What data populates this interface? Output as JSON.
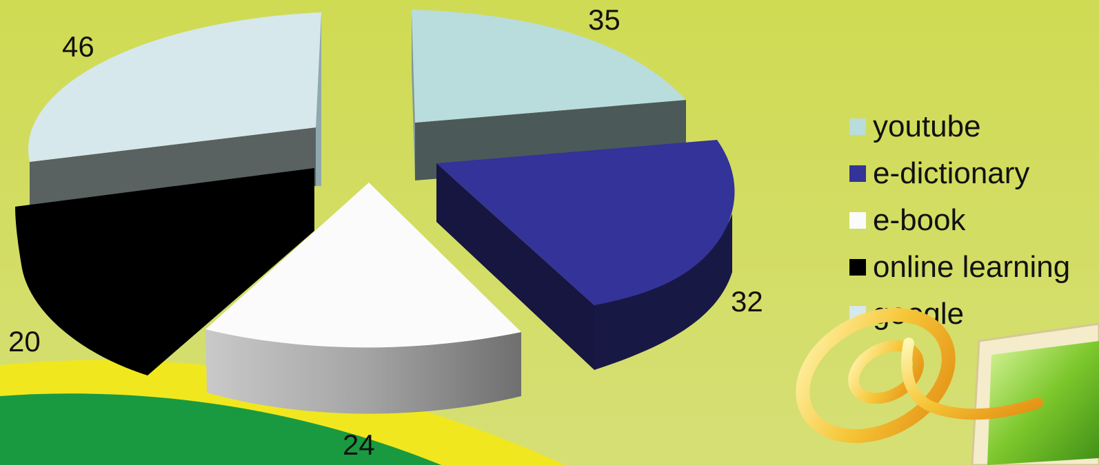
{
  "chart_data": {
    "type": "pie",
    "style": "3d-exploded",
    "categories": [
      "youtube",
      "e-dictionary",
      "e-book",
      "online learning",
      "google"
    ],
    "values": [
      35,
      32,
      24,
      20,
      46
    ],
    "colors": [
      "#b9dcdd",
      "#333399",
      "#fbfbfb",
      "#000000",
      "#d5e8ec"
    ],
    "legend_position": "right",
    "title": ""
  },
  "legend": {
    "items": [
      {
        "label": "youtube",
        "color": "#b9dcdd"
      },
      {
        "label": "e-dictionary",
        "color": "#333399"
      },
      {
        "label": "e-book",
        "color": "#fbfbfb"
      },
      {
        "label": "online learning",
        "color": "#000000"
      },
      {
        "label": "google",
        "color": "#d5e8ec"
      }
    ]
  },
  "decor": {
    "icon": "at-sign-icon",
    "monitor": "monitor-icon"
  }
}
